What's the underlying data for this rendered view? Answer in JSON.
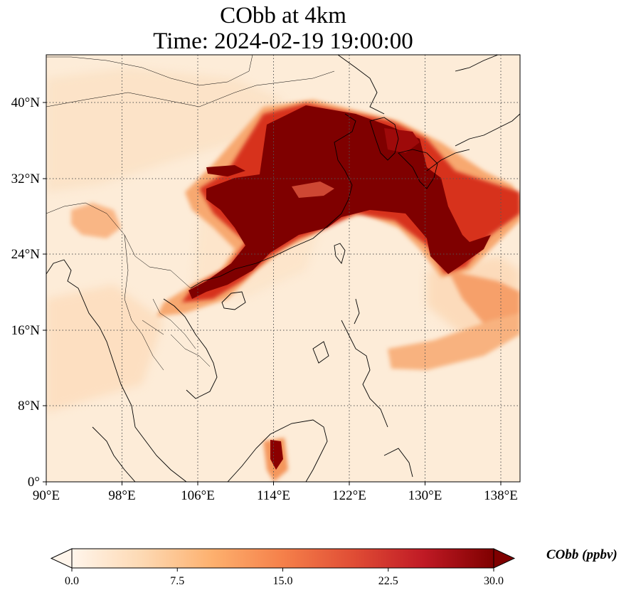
{
  "title": {
    "line1": "CObb at 4km",
    "line2": "Time: 2024-02-19 19:00:00"
  },
  "axes": {
    "lon_ticks": [
      "90°E",
      "98°E",
      "106°E",
      "114°E",
      "122°E",
      "130°E",
      "138°E"
    ],
    "lat_ticks": [
      "0°",
      "8°N",
      "16°N",
      "24°N",
      "32°N",
      "40°N"
    ],
    "gridlines": "dotted"
  },
  "colorbar": {
    "label": "CObb (ppbv)",
    "ticks": [
      "0.0",
      "7.5",
      "15.0",
      "22.5",
      "30.0"
    ],
    "range": [
      0,
      30
    ],
    "extend": "both",
    "colormap": [
      "#fff5eb",
      "#fdd9b3",
      "#fdb06e",
      "#f5804a",
      "#e04d35",
      "#c01a25",
      "#7f0000"
    ]
  },
  "chart_data": {
    "type": "heatmap",
    "title": "CObb at 4km\nTime: 2024-02-19 19:00:00",
    "variable": "CObb",
    "units": "ppbv",
    "level": "4km",
    "time": "2024-02-19 19:00:00",
    "xlim": [
      90,
      140
    ],
    "ylim": [
      0,
      44
    ],
    "x_ticks": [
      90,
      98,
      106,
      114,
      122,
      130,
      138
    ],
    "y_ticks": [
      0,
      8,
      16,
      24,
      32,
      40
    ],
    "vmin": 0,
    "vmax": 30,
    "features": [
      {
        "region": "North/East China plain to Korea and Japan Sea plume",
        "approx_value": "30+"
      },
      {
        "region": "South China coast / Guangdong",
        "approx_value": "20-30"
      },
      {
        "region": "Plume over Pacific east of Taiwan",
        "approx_value": "15-25"
      },
      {
        "region": "Northern Myanmar / NE India",
        "approx_value": "10-15"
      },
      {
        "region": "Philippine Sea band near 13N 128-135E",
        "approx_value": "8-12"
      },
      {
        "region": "Borneo hotspot near 3N 114E",
        "approx_value": "25-30"
      },
      {
        "region": "Background",
        "approx_value": "0-3"
      }
    ]
  }
}
